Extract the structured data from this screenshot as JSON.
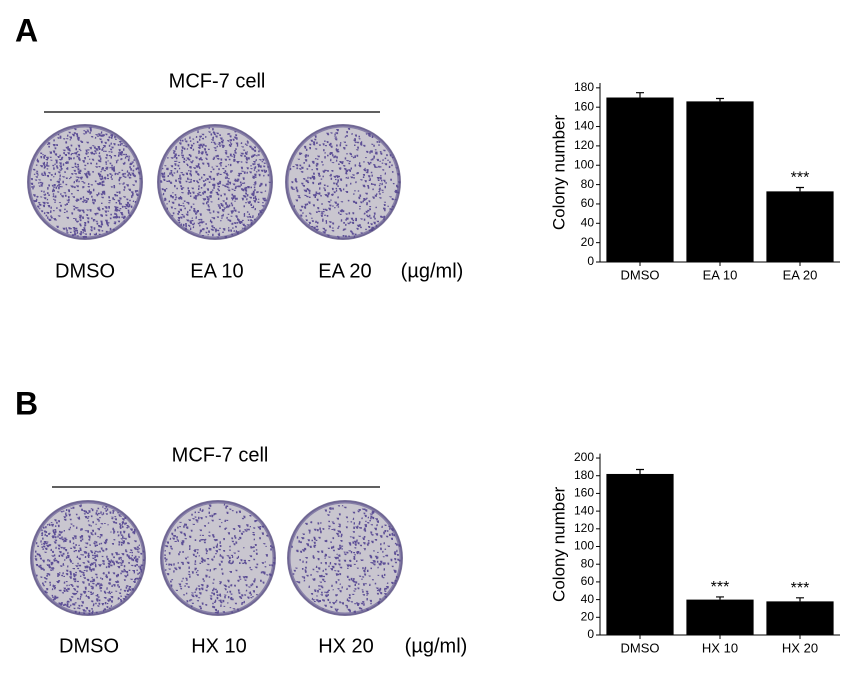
{
  "panels": [
    {
      "label": "A",
      "caption": "MCF-7 cell",
      "plates": [
        "DMSO",
        "EA 10",
        "EA 20"
      ],
      "unit": "(µg/ml)"
    },
    {
      "label": "B",
      "caption": "MCF-7 cell",
      "plates": [
        "DMSO",
        "HX 10",
        "HX 20"
      ],
      "unit": "(µg/ml)"
    }
  ],
  "chart_data": [
    {
      "type": "bar",
      "y_label": "Colony number",
      "categories": [
        "DMSO",
        "EA 10",
        "EA 20"
      ],
      "values": [
        170,
        166,
        73
      ],
      "errors": [
        5,
        3,
        4
      ],
      "significance": [
        null,
        null,
        "***"
      ],
      "color": "#000000",
      "ylim": [
        0,
        185
      ],
      "yticks": [
        0,
        20,
        40,
        60,
        80,
        100,
        120,
        140,
        160,
        180
      ]
    },
    {
      "type": "bar",
      "y_label": "Colony number",
      "categories": [
        "DMSO",
        "HX 10",
        "HX 20"
      ],
      "values": [
        182,
        40,
        38
      ],
      "errors": [
        5,
        3,
        4
      ],
      "significance": [
        null,
        "***",
        "***"
      ],
      "color": "#000000",
      "ylim": [
        0,
        205
      ],
      "yticks": [
        0,
        20,
        40,
        60,
        80,
        100,
        120,
        140,
        160,
        180,
        200
      ]
    }
  ]
}
